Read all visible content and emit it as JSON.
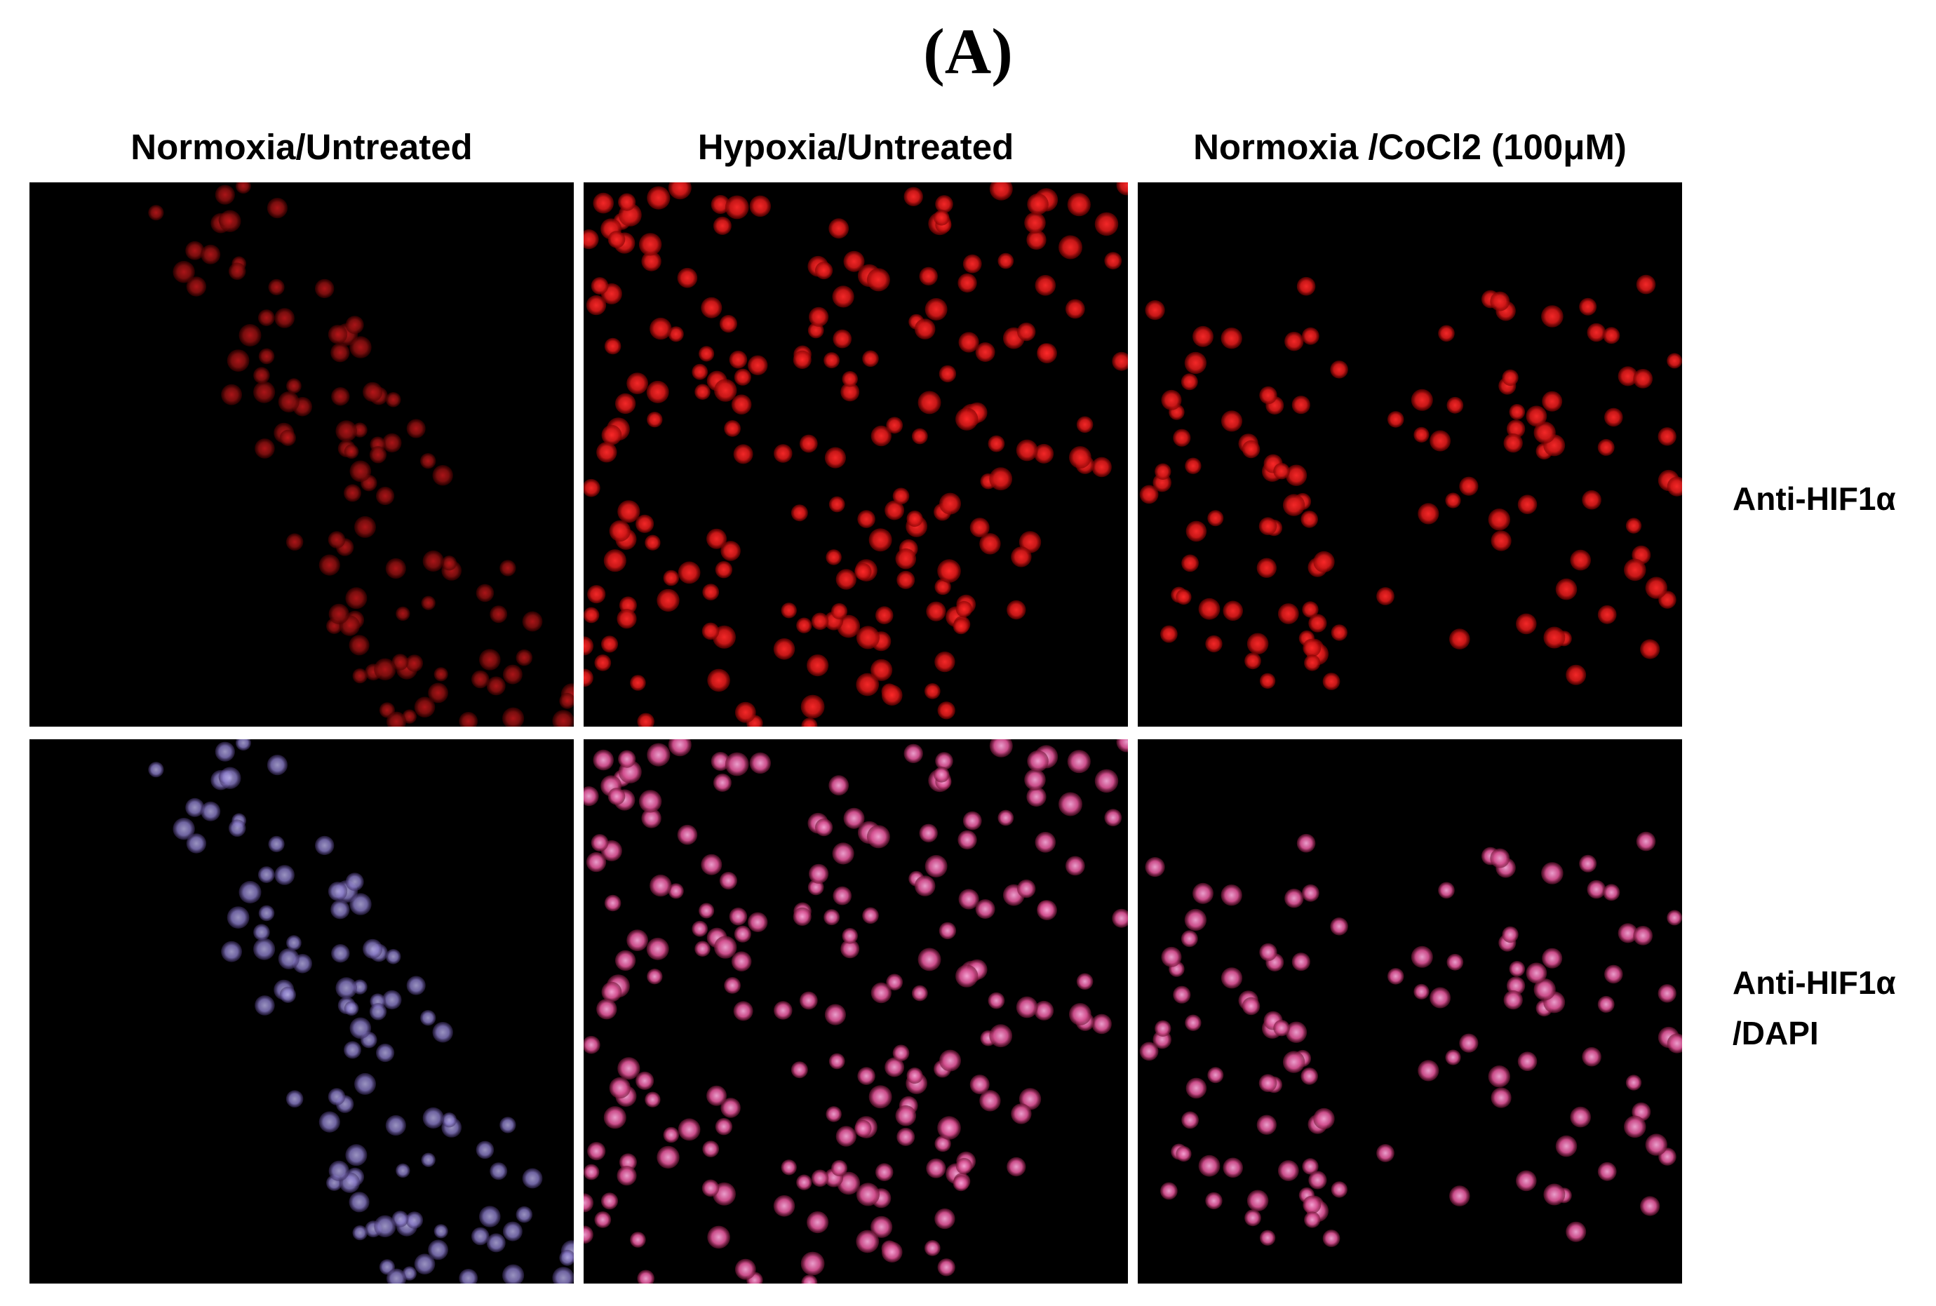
{
  "figure": {
    "panel_letter": "(A)",
    "columns": [
      "Normoxia/Untreated",
      "Hypoxia/Untreated",
      "Normoxia /CoCl2 (100μM)"
    ],
    "rows": [
      {
        "line1": "Anti-HIF1α",
        "line2": ""
      },
      {
        "line1": "Anti-HIF1α",
        "line2": "/DAPI"
      }
    ]
  },
  "colors": {
    "background": "#ffffff",
    "image_background": "#000000",
    "hif1a_stain": "#e0141e",
    "merge_stain": "#f07ab4",
    "dapi_stain": "#9aa6ff"
  }
}
